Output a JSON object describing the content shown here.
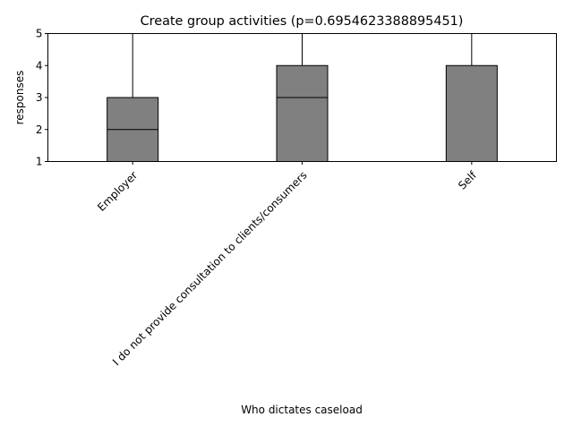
{
  "chart_data": {
    "type": "boxplot",
    "title": "Create group activities (p=0.6954623388895451)",
    "xlabel": "Who dictates caseload",
    "ylabel": "responses",
    "ylim": [
      1,
      5
    ],
    "yticks": [
      1,
      2,
      3,
      4,
      5
    ],
    "categories": [
      "Employer",
      "I do not provide consultation to clients/consumers",
      "Self"
    ],
    "boxes": [
      {
        "category": "Employer",
        "whisker_low": 1,
        "q1": 1,
        "median": 2,
        "q3": 3,
        "whisker_high": 5
      },
      {
        "category": "I do not provide consultation to clients/consumers",
        "whisker_low": 1,
        "q1": 1,
        "median": 3,
        "q3": 4,
        "whisker_high": 5
      },
      {
        "category": "Self",
        "whisker_low": 1,
        "q1": 1,
        "median": 1,
        "q3": 4,
        "whisker_high": 5
      }
    ],
    "colors": {
      "box_fill": "#808080",
      "box_edge": "#000000",
      "median": "#000000"
    },
    "grid": false,
    "legend": "none"
  }
}
